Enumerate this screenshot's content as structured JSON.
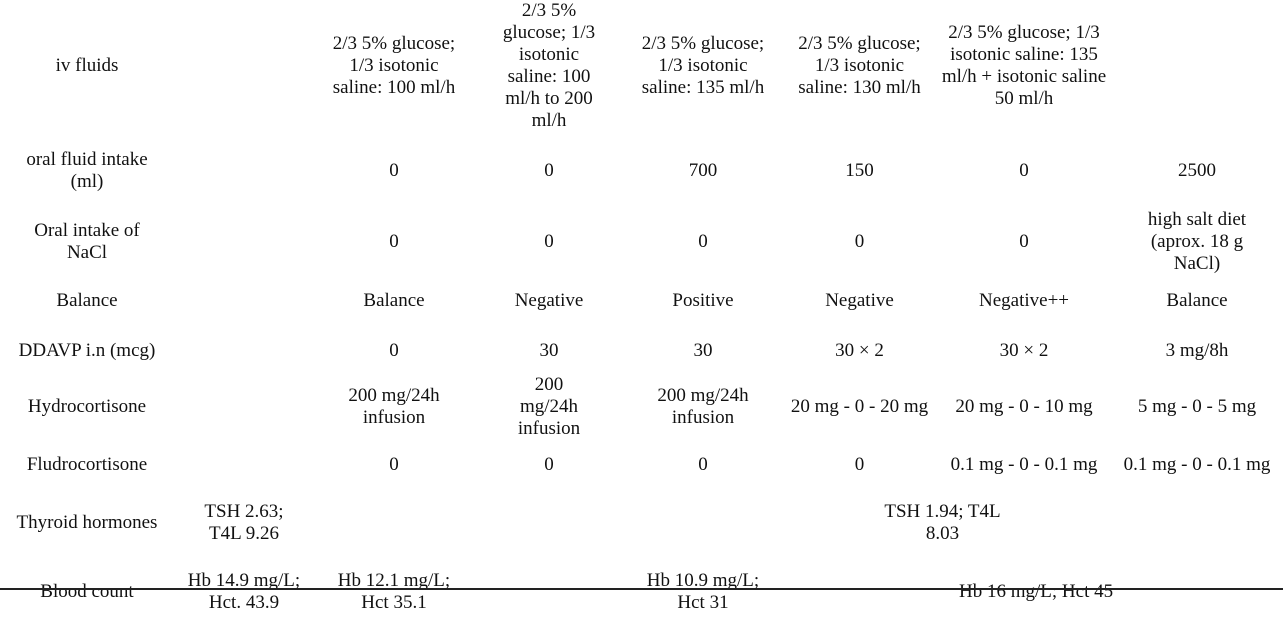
{
  "rows": {
    "iv_fluids": {
      "label": "iv fluids",
      "c2": "2/3 5% glucose; 1/3 isotonic saline: 100 ml/h",
      "c3": "2/3 5% glucose; 1/3 isotonic saline: 100 ml/h to 200 ml/h",
      "c4": "2/3 5% glucose; 1/3 isotonic saline: 135 ml/h",
      "c5": "2/3 5% glucose; 1/3 isotonic saline: 130 ml/h",
      "c6": "2/3 5% glucose; 1/3 isotonic saline: 135 ml/h + isotonic saline 50 ml/h"
    },
    "oral_fluid": {
      "label": "oral fluid intake (ml)",
      "c2": "0",
      "c3": "0",
      "c4": "700",
      "c5": "150",
      "c6": "0",
      "c7": "2500"
    },
    "oral_nacl": {
      "label": "Oral intake of NaCl",
      "c2": "0",
      "c3": "0",
      "c4": "0",
      "c5": "0",
      "c6": "0",
      "c7": "high salt diet (aprox. 18 g NaCl)"
    },
    "balance": {
      "label": "Balance",
      "c2": "Balance",
      "c3": "Negative",
      "c4": "Positive",
      "c5": "Negative",
      "c6": "Negative++",
      "c7": "Balance"
    },
    "ddavp": {
      "label": "DDAVP i.n (mcg)",
      "c2": "0",
      "c3": "30",
      "c4": "30",
      "c5": "30 × 2",
      "c6": "30 × 2",
      "c7": "3 mg/8h"
    },
    "hydrocortisone": {
      "label": "Hydrocortisone",
      "c2": "200 mg/24h infusion",
      "c3": "200 mg/24h infusion",
      "c4": "200 mg/24h infusion",
      "c5": "20 mg - 0 - 20 mg",
      "c6": "20 mg - 0 - 10 mg",
      "c7": "5 mg - 0 - 5 mg"
    },
    "fludrocortisone": {
      "label": "Fludrocortisone",
      "c2": "0",
      "c3": "0",
      "c4": "0",
      "c5": "0",
      "c6": "0.1 mg - 0 - 0.1 mg",
      "c7": "0.1 mg - 0 - 0.1 mg"
    },
    "thyroid": {
      "label": "Thyroid hormones",
      "c1": "TSH 2.63; T4L 9.26",
      "c5": "TSH 1.94; T4L 8.03"
    },
    "blood": {
      "label": "Blood count",
      "c1": "Hb 14.9 mg/L; Hct. 43.9",
      "c2": "Hb 12.1 mg/L; Hct 35.1",
      "c4": "Hb 10.9 mg/L; Hct 31",
      "c6": "Hb 16 mg/L; Hct 45"
    }
  }
}
